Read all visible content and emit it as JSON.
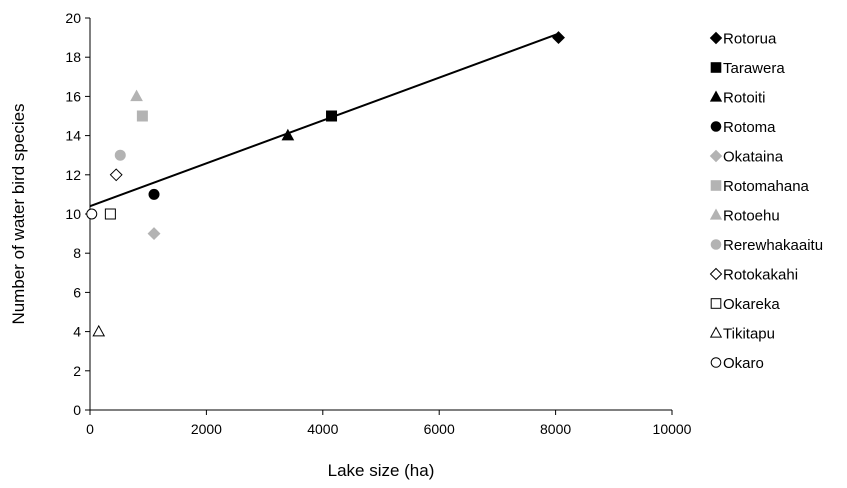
{
  "chart_data": {
    "type": "scatter",
    "title": "",
    "xlabel": "Lake size (ha)",
    "ylabel": "Number of water bird species",
    "xlim": [
      0,
      10000
    ],
    "ylim": [
      0,
      20
    ],
    "xticks": [
      "0",
      "2000",
      "4000",
      "6000",
      "8000",
      "10000"
    ],
    "yticks": [
      "0",
      "2",
      "4",
      "6",
      "8",
      "10",
      "12",
      "14",
      "16",
      "18",
      "20"
    ],
    "grid": false,
    "legend_position": "right",
    "series": [
      {
        "name": "Rotorua",
        "marker": "diamond",
        "fill": "#000000",
        "stroke": "#000000",
        "x": 8050,
        "y": 19
      },
      {
        "name": "Tarawera",
        "marker": "square",
        "fill": "#000000",
        "stroke": "#000000",
        "x": 4150,
        "y": 15
      },
      {
        "name": "Rotoiti",
        "marker": "triangle",
        "fill": "#000000",
        "stroke": "#000000",
        "x": 3400,
        "y": 14
      },
      {
        "name": "Rotoma",
        "marker": "circle",
        "fill": "#000000",
        "stroke": "#000000",
        "x": 1100,
        "y": 11
      },
      {
        "name": "Okataina",
        "marker": "diamond",
        "fill": "#b3b3b3",
        "stroke": "#b3b3b3",
        "x": 1100,
        "y": 9
      },
      {
        "name": "Rotomahana",
        "marker": "square",
        "fill": "#b3b3b3",
        "stroke": "#b3b3b3",
        "x": 900,
        "y": 15
      },
      {
        "name": "Rotoehu",
        "marker": "triangle",
        "fill": "#b3b3b3",
        "stroke": "#b3b3b3",
        "x": 800,
        "y": 16
      },
      {
        "name": "Rerewhakaaitu",
        "marker": "circle",
        "fill": "#b3b3b3",
        "stroke": "#b3b3b3",
        "x": 520,
        "y": 13
      },
      {
        "name": "Rotokakahi",
        "marker": "diamond",
        "fill": "#ffffff",
        "stroke": "#000000",
        "x": 450,
        "y": 12
      },
      {
        "name": "Okareka",
        "marker": "square",
        "fill": "#ffffff",
        "stroke": "#000000",
        "x": 350,
        "y": 10
      },
      {
        "name": "Tikitapu",
        "marker": "triangle",
        "fill": "#ffffff",
        "stroke": "#000000",
        "x": 150,
        "y": 4
      },
      {
        "name": "Okaro",
        "marker": "circle",
        "fill": "#ffffff",
        "stroke": "#000000",
        "x": 30,
        "y": 10
      }
    ],
    "trendline": {
      "type": "linear",
      "x": [
        0,
        8050
      ],
      "y": [
        10.4,
        19.2
      ],
      "color": "#000000"
    }
  }
}
